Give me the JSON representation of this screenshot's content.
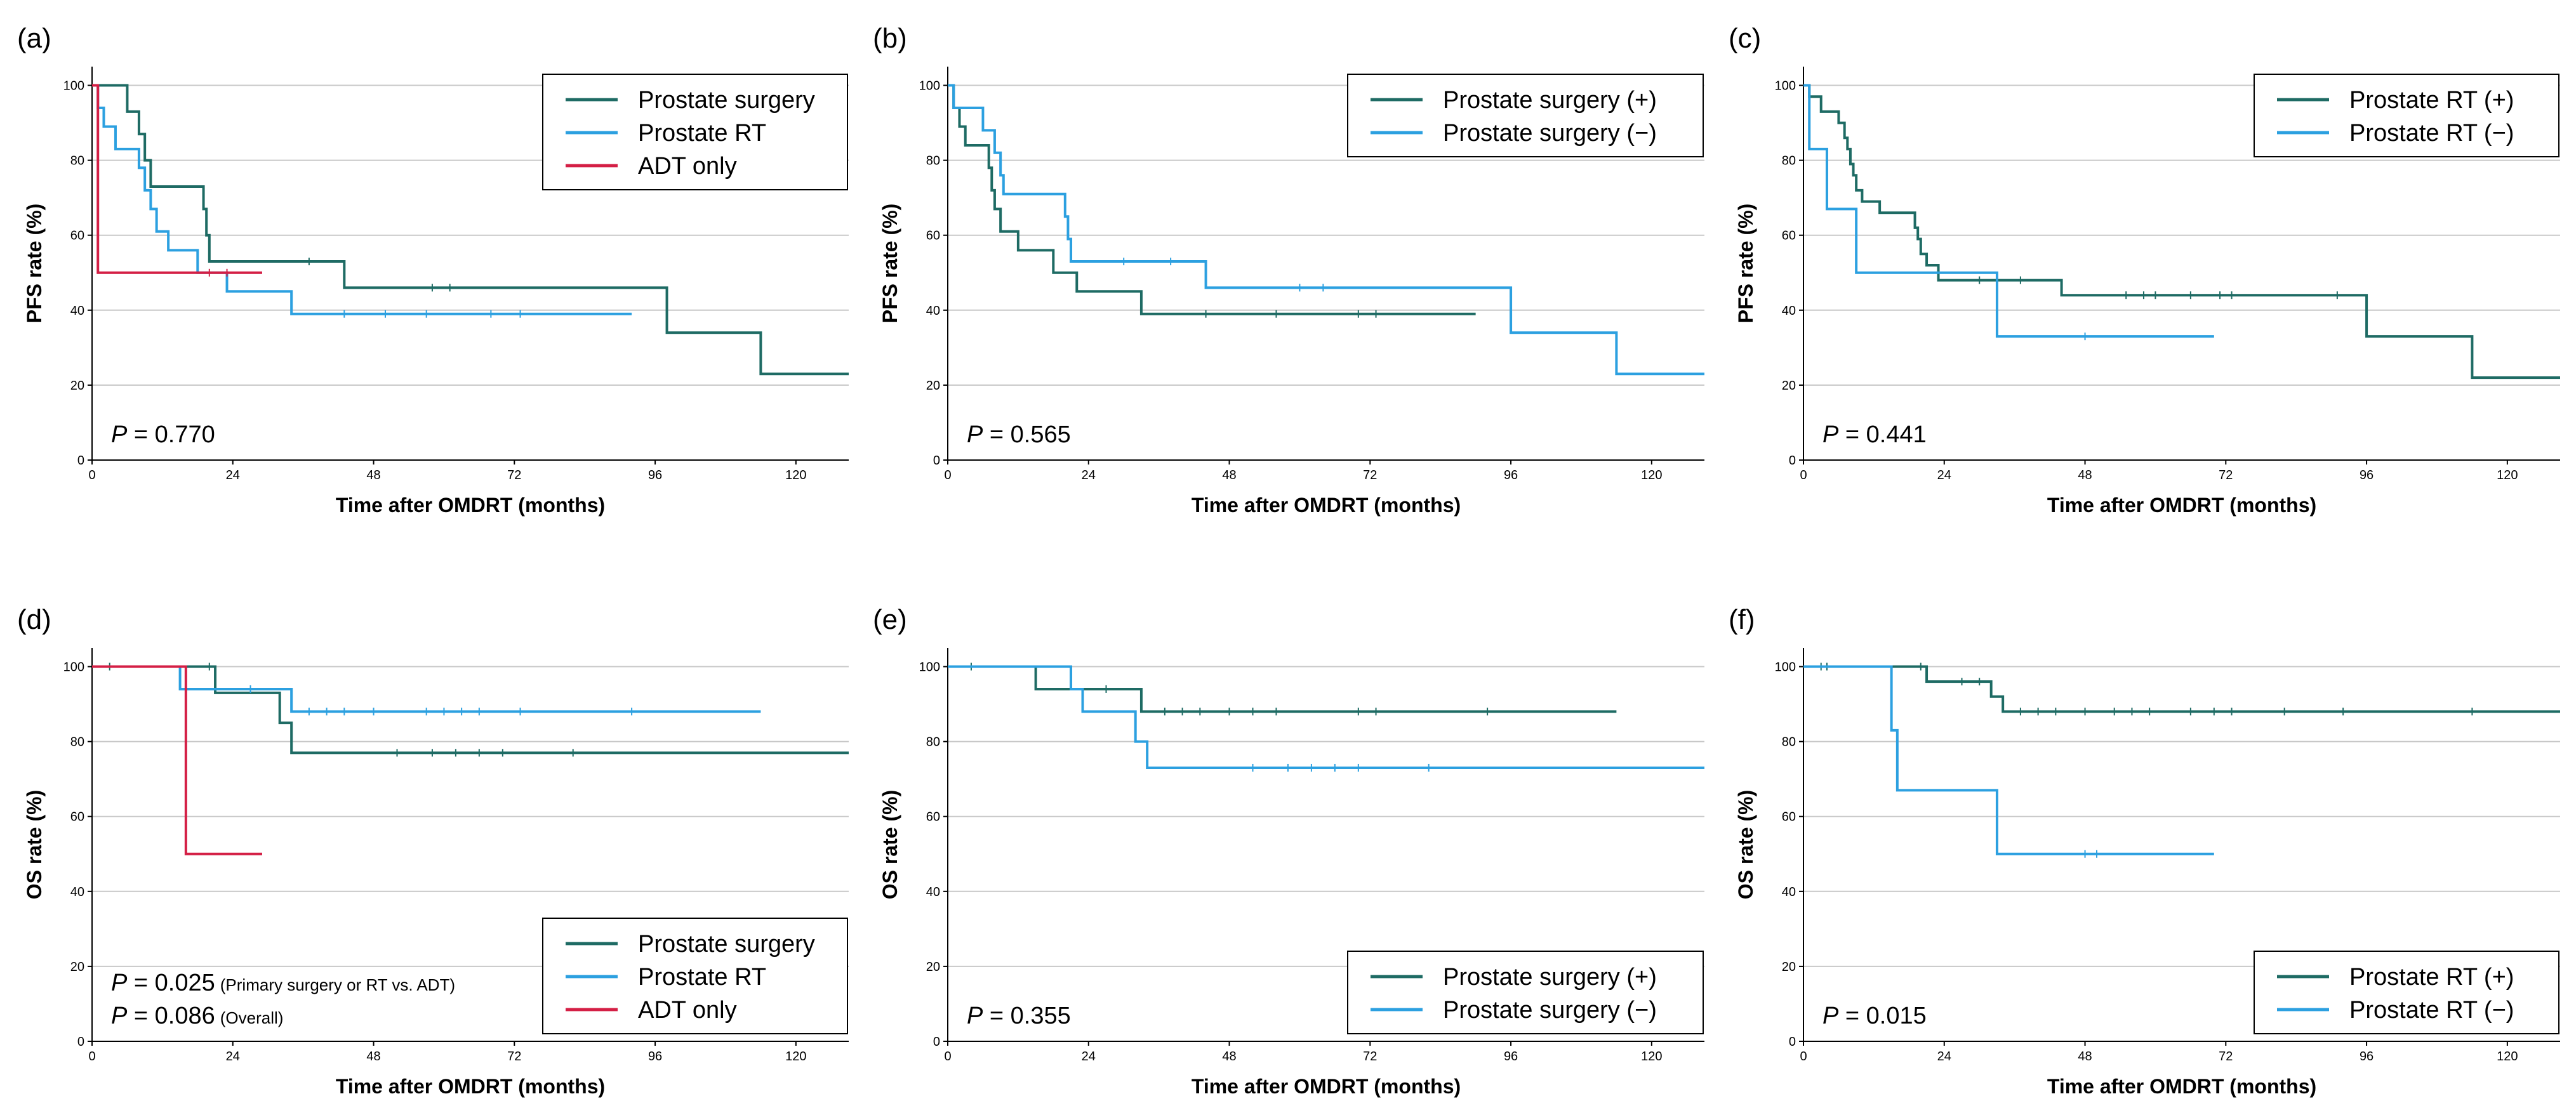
{
  "colors": {
    "series_1": "#1e6b64",
    "series_2": "#2ca0e0",
    "series_3": "#d41f45",
    "gridline": "#c8c8c8",
    "axis": "#000000"
  },
  "chart_data": [
    {
      "panel": "(a)",
      "type": "line",
      "step": true,
      "xlabel": "Time after OMDRT (months)",
      "ylabel": "PFS rate (%)",
      "xlim": [
        0,
        129
      ],
      "ylim": [
        0,
        105
      ],
      "xticks": [
        0,
        24,
        48,
        72,
        96,
        120
      ],
      "yticks": [
        0,
        20,
        40,
        60,
        80,
        100
      ],
      "legend_position": "top-right",
      "annotations": [
        {
          "label": "P",
          "text": " = 0.770"
        }
      ],
      "series": [
        {
          "name": "Prostate surgery",
          "color_key": "series_1",
          "steps": [
            [
              0,
              100
            ],
            [
              6,
              93
            ],
            [
              8,
              87
            ],
            [
              9,
              80
            ],
            [
              10,
              73
            ],
            [
              19,
              67
            ],
            [
              19.5,
              60
            ],
            [
              20,
              53
            ],
            [
              43,
              46
            ],
            [
              98,
              34
            ],
            [
              114,
              23
            ],
            [
              129,
              23
            ]
          ],
          "censors": [
            [
              37,
              53
            ],
            [
              58,
              46
            ],
            [
              61,
              46
            ]
          ]
        },
        {
          "name": "Prostate RT",
          "color_key": "series_2",
          "steps": [
            [
              0,
              100
            ],
            [
              1,
              94
            ],
            [
              2,
              89
            ],
            [
              4,
              83
            ],
            [
              8,
              78
            ],
            [
              9,
              72
            ],
            [
              10,
              67
            ],
            [
              11,
              61
            ],
            [
              13,
              56
            ],
            [
              18,
              50
            ],
            [
              23,
              45
            ],
            [
              34,
              39
            ],
            [
              92,
              39
            ]
          ],
          "censors": [
            [
              43,
              39
            ],
            [
              50,
              39
            ],
            [
              57,
              39
            ],
            [
              68,
              39
            ],
            [
              73,
              39
            ]
          ]
        },
        {
          "name": "ADT only",
          "color_key": "series_3",
          "steps": [
            [
              0,
              100
            ],
            [
              1,
              50
            ],
            [
              29,
              50
            ]
          ],
          "censors": [
            [
              20,
              50
            ],
            [
              23,
              50
            ]
          ]
        }
      ]
    },
    {
      "panel": "(b)",
      "type": "line",
      "step": true,
      "xlabel": "Time after OMDRT (months)",
      "ylabel": "PFS rate (%)",
      "xlim": [
        0,
        129
      ],
      "ylim": [
        0,
        105
      ],
      "xticks": [
        0,
        24,
        48,
        72,
        96,
        120
      ],
      "yticks": [
        0,
        20,
        40,
        60,
        80,
        100
      ],
      "legend_position": "top-right",
      "annotations": [
        {
          "label": "P",
          "text": " = 0.565"
        }
      ],
      "series": [
        {
          "name": "Prostate surgery (+)",
          "color_key": "series_1",
          "steps": [
            [
              0,
              100
            ],
            [
              1,
              94
            ],
            [
              2,
              89
            ],
            [
              3,
              84
            ],
            [
              7,
              78
            ],
            [
              7.5,
              72
            ],
            [
              8,
              67
            ],
            [
              9,
              61
            ],
            [
              12,
              56
            ],
            [
              18,
              50
            ],
            [
              22,
              45
            ],
            [
              33,
              39
            ],
            [
              90,
              39
            ]
          ],
          "censors": [
            [
              44,
              39
            ],
            [
              56,
              39
            ],
            [
              70,
              39
            ],
            [
              73,
              39
            ]
          ]
        },
        {
          "name": "Prostate surgery (−)",
          "color_key": "series_2",
          "steps": [
            [
              0,
              100
            ],
            [
              1,
              94
            ],
            [
              6,
              88
            ],
            [
              8,
              82
            ],
            [
              9,
              76
            ],
            [
              9.5,
              71
            ],
            [
              20,
              65
            ],
            [
              20.5,
              59
            ],
            [
              21,
              53
            ],
            [
              44,
              46
            ],
            [
              96,
              34
            ],
            [
              114,
              23
            ],
            [
              129,
              23
            ]
          ],
          "censors": [
            [
              30,
              53
            ],
            [
              38,
              53
            ],
            [
              60,
              46
            ],
            [
              64,
              46
            ]
          ]
        }
      ]
    },
    {
      "panel": "(c)",
      "type": "line",
      "step": true,
      "xlabel": "Time after OMDRT (months)",
      "ylabel": "PFS rate (%)",
      "xlim": [
        0,
        129
      ],
      "ylim": [
        0,
        105
      ],
      "xticks": [
        0,
        24,
        48,
        72,
        96,
        120
      ],
      "yticks": [
        0,
        20,
        40,
        60,
        80,
        100
      ],
      "legend_position": "top-right",
      "annotations": [
        {
          "label": "P",
          "text": " = 0.441"
        }
      ],
      "series": [
        {
          "name": "Prostate RT (+)",
          "color_key": "series_1",
          "steps": [
            [
              0,
              100
            ],
            [
              1,
              97
            ],
            [
              3,
              93
            ],
            [
              6,
              90
            ],
            [
              7,
              86
            ],
            [
              7.5,
              83
            ],
            [
              8,
              79
            ],
            [
              8.5,
              76
            ],
            [
              9,
              72
            ],
            [
              10,
              69
            ],
            [
              13,
              66
            ],
            [
              19,
              62
            ],
            [
              19.5,
              59
            ],
            [
              20,
              55
            ],
            [
              21,
              52
            ],
            [
              23,
              48
            ],
            [
              44,
              44
            ],
            [
              96,
              33
            ],
            [
              114,
              22
            ],
            [
              129,
              22
            ]
          ],
          "censors": [
            [
              30,
              48
            ],
            [
              37,
              48
            ],
            [
              55,
              44
            ],
            [
              58,
              44
            ],
            [
              60,
              44
            ],
            [
              66,
              44
            ],
            [
              71,
              44
            ],
            [
              73,
              44
            ],
            [
              91,
              44
            ]
          ]
        },
        {
          "name": "Prostate RT (−)",
          "color_key": "series_2",
          "steps": [
            [
              0,
              100
            ],
            [
              1,
              83
            ],
            [
              4,
              67
            ],
            [
              9,
              50
            ],
            [
              33,
              33
            ],
            [
              70,
              33
            ]
          ],
          "censors": [
            [
              48,
              33
            ]
          ]
        }
      ]
    },
    {
      "panel": "(d)",
      "type": "line",
      "step": true,
      "xlabel": "Time after OMDRT (months)",
      "ylabel": "OS rate (%)",
      "xlim": [
        0,
        129
      ],
      "ylim": [
        0,
        105
      ],
      "xticks": [
        0,
        24,
        48,
        72,
        96,
        120
      ],
      "yticks": [
        0,
        20,
        40,
        60,
        80,
        100
      ],
      "legend_position": "bottom-right",
      "annotations": [
        {
          "label": "P",
          "text": " = 0.025",
          "note": "(Primary surgery or RT vs. ADT)"
        },
        {
          "label": "P",
          "text": " = 0.086",
          "note": "(Overall)"
        }
      ],
      "series": [
        {
          "name": "Prostate surgery",
          "color_key": "series_1",
          "steps": [
            [
              0,
              100
            ],
            [
              21,
              93
            ],
            [
              32,
              85
            ],
            [
              34,
              77
            ],
            [
              129,
              77
            ]
          ],
          "censors": [
            [
              3,
              100
            ],
            [
              20,
              100
            ],
            [
              52,
              77
            ],
            [
              58,
              77
            ],
            [
              62,
              77
            ],
            [
              66,
              77
            ],
            [
              70,
              77
            ],
            [
              82,
              77
            ]
          ]
        },
        {
          "name": "Prostate RT",
          "color_key": "series_2",
          "steps": [
            [
              0,
              100
            ],
            [
              15,
              94
            ],
            [
              34,
              88
            ],
            [
              114,
              88
            ]
          ],
          "censors": [
            [
              27,
              94
            ],
            [
              37,
              88
            ],
            [
              40,
              88
            ],
            [
              43,
              88
            ],
            [
              48,
              88
            ],
            [
              57,
              88
            ],
            [
              60,
              88
            ],
            [
              63,
              88
            ],
            [
              66,
              88
            ],
            [
              73,
              88
            ],
            [
              92,
              88
            ]
          ]
        },
        {
          "name": "ADT only",
          "color_key": "series_3",
          "steps": [
            [
              0,
              100
            ],
            [
              16,
              50
            ],
            [
              29,
              50
            ]
          ],
          "censors": []
        }
      ]
    },
    {
      "panel": "(e)",
      "type": "line",
      "step": true,
      "xlabel": "Time after OMDRT (months)",
      "ylabel": "OS rate (%)",
      "xlim": [
        0,
        129
      ],
      "ylim": [
        0,
        105
      ],
      "xticks": [
        0,
        24,
        48,
        72,
        96,
        120
      ],
      "yticks": [
        0,
        20,
        40,
        60,
        80,
        100
      ],
      "legend_position": "bottom-right",
      "annotations": [
        {
          "label": "P",
          "text": " = 0.355"
        }
      ],
      "series": [
        {
          "name": "Prostate surgery (+)",
          "color_key": "series_1",
          "steps": [
            [
              0,
              100
            ],
            [
              15,
              94
            ],
            [
              33,
              88
            ],
            [
              114,
              88
            ]
          ],
          "censors": [
            [
              4,
              100
            ],
            [
              27,
              94
            ],
            [
              37,
              88
            ],
            [
              40,
              88
            ],
            [
              43,
              88
            ],
            [
              48,
              88
            ],
            [
              52,
              88
            ],
            [
              56,
              88
            ],
            [
              70,
              88
            ],
            [
              73,
              88
            ],
            [
              92,
              88
            ]
          ]
        },
        {
          "name": "Prostate surgery (−)",
          "color_key": "series_2",
          "steps": [
            [
              0,
              100
            ],
            [
              21,
              94
            ],
            [
              23,
              88
            ],
            [
              32,
              80
            ],
            [
              34,
              73
            ],
            [
              129,
              73
            ]
          ],
          "censors": [
            [
              52,
              73
            ],
            [
              58,
              73
            ],
            [
              62,
              73
            ],
            [
              66,
              73
            ],
            [
              70,
              73
            ],
            [
              82,
              73
            ]
          ]
        }
      ]
    },
    {
      "panel": "(f)",
      "type": "line",
      "step": true,
      "xlabel": "Time after OMDRT (months)",
      "ylabel": "OS rate (%)",
      "xlim": [
        0,
        129
      ],
      "ylim": [
        0,
        105
      ],
      "xticks": [
        0,
        24,
        48,
        72,
        96,
        120
      ],
      "yticks": [
        0,
        20,
        40,
        60,
        80,
        100
      ],
      "legend_position": "bottom-right",
      "annotations": [
        {
          "label": "P",
          "text": " = 0.015"
        }
      ],
      "series": [
        {
          "name": "Prostate RT (+)",
          "color_key": "series_1",
          "steps": [
            [
              0,
              100
            ],
            [
              21,
              96
            ],
            [
              32,
              92
            ],
            [
              34,
              88
            ],
            [
              129,
              88
            ]
          ],
          "censors": [
            [
              3,
              100
            ],
            [
              4,
              100
            ],
            [
              20,
              100
            ],
            [
              27,
              96
            ],
            [
              30,
              96
            ],
            [
              37,
              88
            ],
            [
              40,
              88
            ],
            [
              43,
              88
            ],
            [
              48,
              88
            ],
            [
              53,
              88
            ],
            [
              56,
              88
            ],
            [
              59,
              88
            ],
            [
              66,
              88
            ],
            [
              70,
              88
            ],
            [
              73,
              88
            ],
            [
              82,
              88
            ],
            [
              92,
              88
            ],
            [
              114,
              88
            ]
          ]
        },
        {
          "name": "Prostate RT (−)",
          "color_key": "series_2",
          "steps": [
            [
              0,
              100
            ],
            [
              15,
              83
            ],
            [
              16,
              67
            ],
            [
              33,
              50
            ],
            [
              70,
              50
            ]
          ],
          "censors": [
            [
              48,
              50
            ],
            [
              50,
              50
            ]
          ]
        }
      ]
    }
  ]
}
